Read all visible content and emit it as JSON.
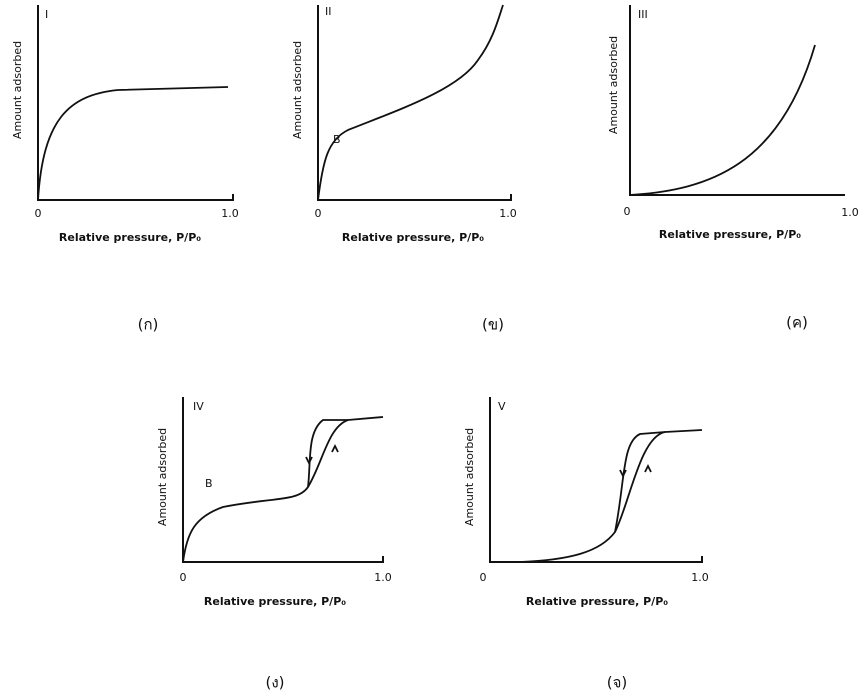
{
  "panels": [
    {
      "roman": "I",
      "y_label": "Amount adsorbed",
      "x_label": "Relative pressure, P/P₀",
      "x_ticks": [
        "0",
        "1.0"
      ],
      "caption": "(ก)"
    },
    {
      "roman": "II",
      "y_label": "Amount adsorbed",
      "x_label": "Relative pressure, P/P₀",
      "x_ticks": [
        "0",
        "1.0"
      ],
      "point_label": "B",
      "caption": "(ข)"
    },
    {
      "roman": "III",
      "y_label": "Amount adsorbed",
      "x_label": "Relative pressure, P/P₀",
      "x_ticks": [
        "0",
        "1.0"
      ],
      "caption": "(ค)"
    },
    {
      "roman": "IV",
      "y_label": "Amount adsorbed",
      "x_label": "Relative pressure, P/P₀",
      "x_ticks": [
        "0",
        "1.0"
      ],
      "point_label": "B",
      "caption": "(ง)"
    },
    {
      "roman": "V",
      "y_label": "Amount adsorbed",
      "x_label": "Relative pressure, P/P₀",
      "x_ticks": [
        "0",
        "1.0"
      ],
      "caption": "(จ)"
    }
  ]
}
